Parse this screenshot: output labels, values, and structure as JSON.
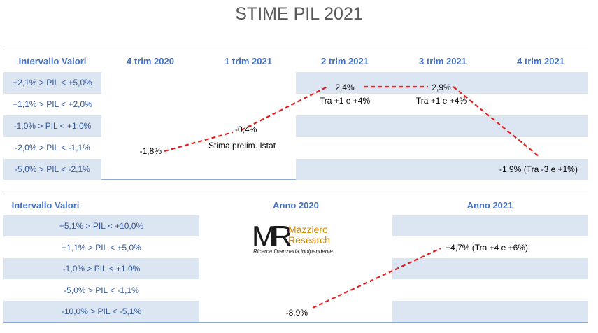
{
  "title": "STIME PIL 2021",
  "colors": {
    "band": "#dce6f2",
    "header_text": "#4472c4",
    "row_text": "#2e5597",
    "line": "#e32020",
    "rule": "#8eaadb"
  },
  "chart_data": [
    {
      "type": "line",
      "name": "quarterly",
      "header": [
        "Intervallo Valori",
        "4 trim 2020",
        "1 trim 2021",
        "2 trim 2021",
        "3 trim 2021",
        "4 trim 2021"
      ],
      "rows": [
        "+2,1% > PIL < +5,0%",
        "+1,1% > PIL < +2,0%",
        "-1,0% > PIL < +1,0%",
        "-2,0% > PIL < -1,1%",
        "-5,0% > PIL < -2,1%"
      ],
      "x": [
        "4 trim 2020",
        "1 trim 2021",
        "2 trim 2021",
        "3 trim 2021",
        "4 trim 2021"
      ],
      "values": [
        -1.8,
        -0.4,
        2.4,
        2.9,
        -1.9
      ],
      "labels": [
        "-1,8%",
        "-0,4%",
        "2,4%",
        "2,9%",
        "-1,9% (Tra -3 e +1%)"
      ],
      "notes": [
        "",
        "Stima prelim. Istat",
        "Tra +1 e +4%",
        "Tra +1 e +4%",
        ""
      ]
    },
    {
      "type": "line",
      "name": "annual",
      "header": [
        "Intervallo Valori",
        "Anno 2020",
        "Anno 2021"
      ],
      "rows": [
        "+5,1% > PIL < +10,0%",
        "+1,1% > PIL < +5,0%",
        "-1,0% > PIL < +1,0%",
        "-5,0% > PIL < -1,1%",
        "-10,0% > PIL < -5,1%"
      ],
      "x": [
        "Anno 2020",
        "Anno 2021"
      ],
      "values": [
        -8.9,
        4.7
      ],
      "labels": [
        "-8,9%",
        "+4,7% (Tra +4 e +6%)"
      ]
    }
  ],
  "logo": {
    "mark": "MR",
    "name_line1": "Mazziero",
    "name_line2": "Research",
    "tagline": "Ricerca finanziaria indipendente"
  }
}
